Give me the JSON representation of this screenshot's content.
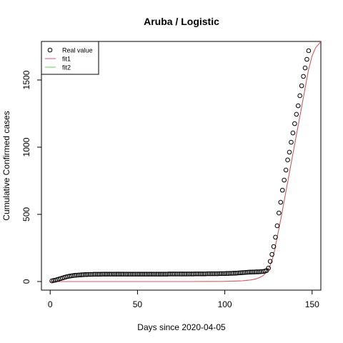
{
  "chart_data": {
    "type": "scatter",
    "title": "Aruba / Logistic",
    "xlabel": "Days since 2020-04-05",
    "ylabel": "Cumulative Confirmed cases",
    "xlim": [
      -5,
      155
    ],
    "ylim": [
      -64,
      1787
    ],
    "xticks": [
      0,
      50,
      100,
      150
    ],
    "yticks": [
      0,
      500,
      1000,
      1500
    ],
    "legend": "top-left",
    "series": [
      {
        "name": "Real value",
        "color": "#000000",
        "marker": "circle",
        "x": [
          1,
          2,
          3,
          4,
          5,
          6,
          7,
          8,
          9,
          10,
          11,
          12,
          13,
          14,
          15,
          16,
          17,
          18,
          19,
          20,
          21,
          22,
          23,
          24,
          25,
          26,
          27,
          28,
          29,
          30,
          31,
          32,
          33,
          34,
          35,
          36,
          37,
          38,
          39,
          40,
          41,
          42,
          43,
          44,
          45,
          46,
          47,
          48,
          49,
          50,
          51,
          52,
          53,
          54,
          55,
          56,
          57,
          58,
          59,
          60,
          61,
          62,
          63,
          64,
          65,
          66,
          67,
          68,
          69,
          70,
          71,
          72,
          73,
          74,
          75,
          76,
          77,
          78,
          79,
          80,
          81,
          82,
          83,
          84,
          85,
          86,
          87,
          88,
          89,
          90,
          91,
          92,
          93,
          94,
          95,
          96,
          97,
          98,
          99,
          100,
          101,
          102,
          103,
          104,
          105,
          106,
          107,
          108,
          109,
          110,
          111,
          112,
          113,
          114,
          115,
          116,
          117,
          118,
          119,
          120,
          121,
          122,
          123,
          124,
          125,
          126,
          127,
          128,
          129,
          130,
          131,
          132,
          133,
          134,
          135,
          136,
          137,
          138,
          139,
          140,
          141,
          142,
          143,
          144,
          145,
          146,
          147,
          148
        ],
        "values": [
          5,
          8,
          10,
          14,
          18,
          22,
          26,
          30,
          34,
          37,
          40,
          42,
          44,
          46,
          47,
          48,
          49,
          50,
          51,
          52,
          52,
          53,
          53,
          53,
          54,
          54,
          54,
          54,
          54,
          55,
          55,
          55,
          55,
          55,
          55,
          55,
          55,
          55,
          55,
          55,
          55,
          55,
          55,
          55,
          55,
          55,
          55,
          55,
          55,
          55,
          55,
          55,
          55,
          55,
          55,
          55,
          55,
          55,
          55,
          55,
          55,
          55,
          55,
          55,
          55,
          55,
          55,
          56,
          56,
          56,
          56,
          56,
          56,
          56,
          56,
          56,
          56,
          56,
          56,
          56,
          56,
          56,
          57,
          57,
          57,
          57,
          57,
          57,
          57,
          58,
          58,
          58,
          58,
          58,
          58,
          58,
          59,
          59,
          59,
          59,
          60,
          60,
          61,
          61,
          62,
          62,
          63,
          64,
          65,
          66,
          67,
          68,
          69,
          70,
          70,
          71,
          71,
          72,
          72,
          73,
          74,
          75,
          78,
          82,
          100,
          150,
          202,
          260,
          330,
          415,
          510,
          590,
          680,
          755,
          830,
          905,
          963,
          1037,
          1106,
          1175,
          1245,
          1308,
          1383,
          1457,
          1527,
          1590,
          1654,
          1718
        ]
      },
      {
        "name": "fit1",
        "color": "#DF536B",
        "marker": "line",
        "x": [
          0,
          20,
          40,
          60,
          80,
          100,
          110,
          115,
          118,
          120,
          122,
          124,
          126,
          128,
          130,
          132,
          134,
          136,
          138,
          140,
          142,
          144,
          146,
          148,
          150,
          152,
          155
        ],
        "values": [
          0,
          0,
          0,
          0,
          0,
          1,
          5,
          12,
          20,
          30,
          45,
          70,
          120,
          200,
          330,
          460,
          600,
          740,
          880,
          1020,
          1160,
          1300,
          1440,
          1580,
          1680,
          1740,
          1785
        ]
      },
      {
        "name": "fit2",
        "color": "#61D04F",
        "marker": "line",
        "x": [
          0,
          20,
          40,
          60,
          80,
          100,
          110,
          115,
          118,
          120,
          122,
          124,
          126,
          128,
          130,
          132,
          134,
          136,
          138,
          140,
          142,
          144,
          146,
          148,
          150,
          152,
          155
        ],
        "values": [
          0,
          0,
          0,
          0,
          0,
          1,
          5,
          12,
          20,
          30,
          45,
          70,
          120,
          200,
          330,
          460,
          600,
          740,
          880,
          1020,
          1160,
          1300,
          1440,
          1580,
          1680,
          1740,
          1785
        ]
      }
    ]
  }
}
